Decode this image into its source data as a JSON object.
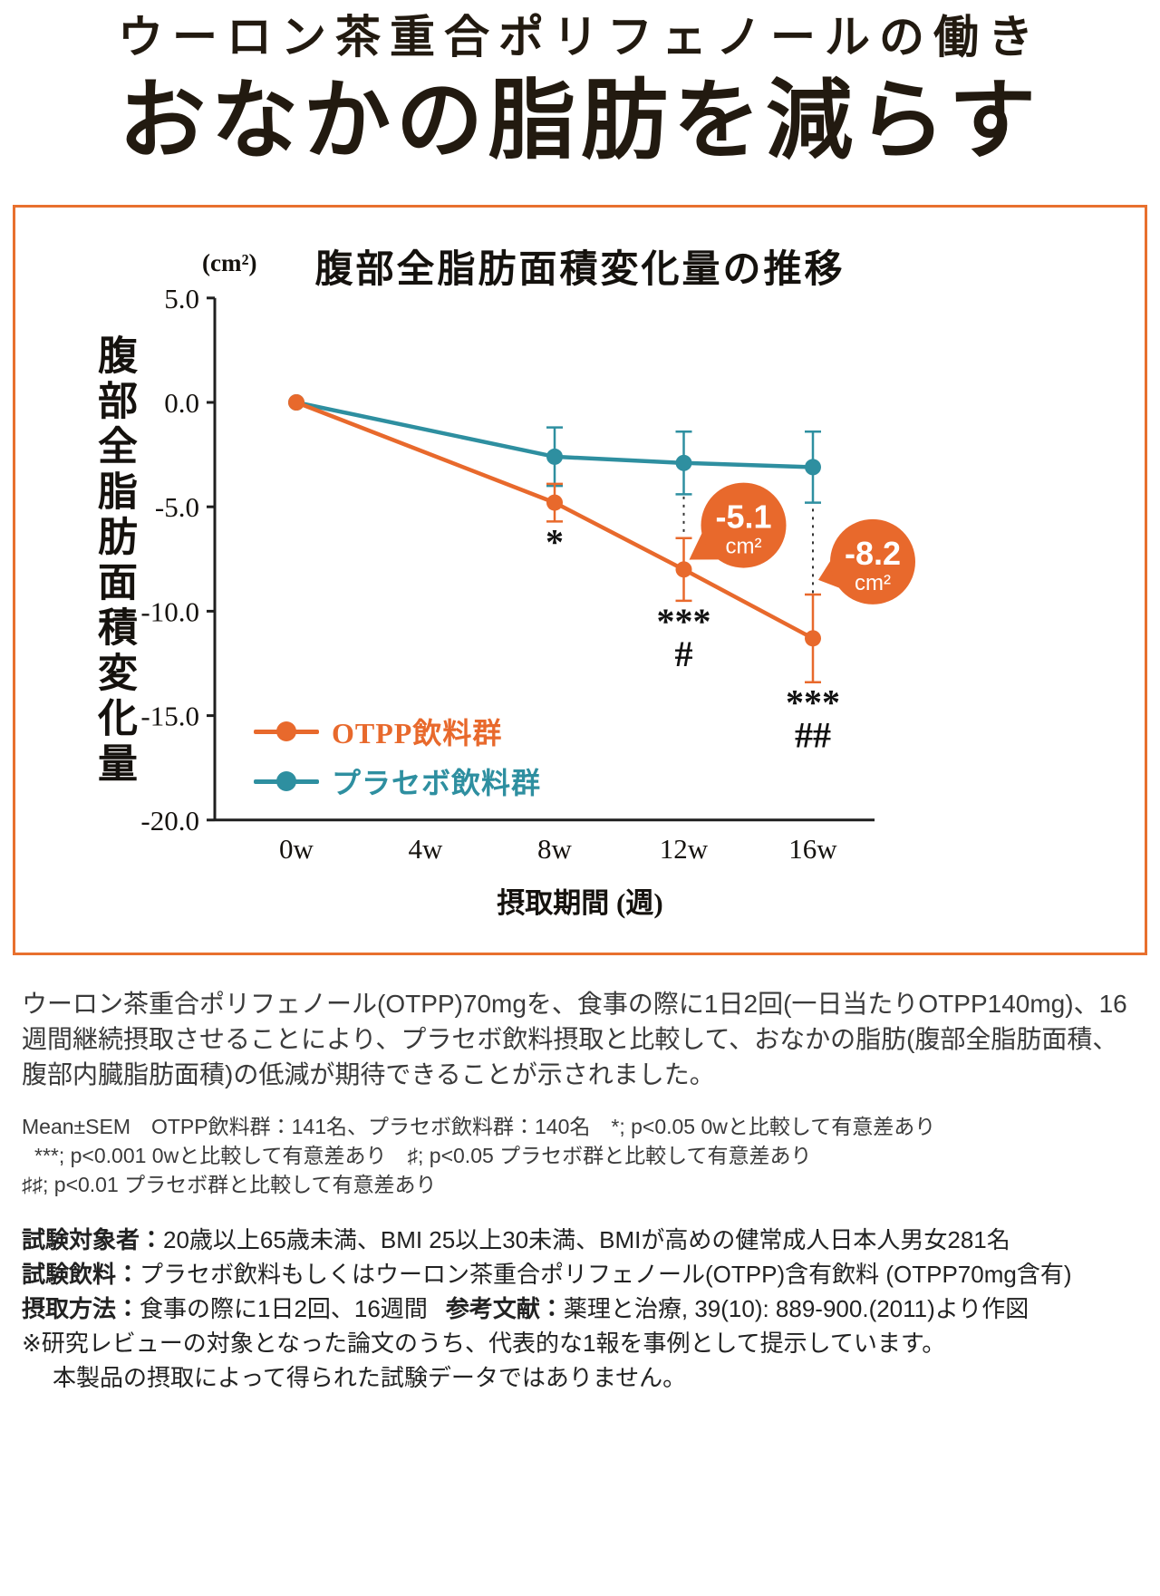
{
  "colors": {
    "accent_orange": "#e8702e",
    "series_orange": "#e8692c",
    "series_teal": "#2e8fa0",
    "axis": "#1f1f1f",
    "heading_text": "#221a10"
  },
  "header": {
    "subtitle": "ウーロン茶重合ポリフェノールの働き",
    "title": "おなかの脂肪を減らす"
  },
  "chart_data": {
    "type": "line",
    "title": "腹部全脂肪面積変化量の推移",
    "unit_label": "(cm²)",
    "ylabel": "腹部全脂肪面積変化量",
    "xlabel": "摂取期間 (週)",
    "grid": false,
    "legend_position": "lower-left-inside",
    "ylim": [
      -20,
      5
    ],
    "y_ticks": [
      "5.0",
      "0.0",
      "-5.0",
      "-10.0",
      "-15.0",
      "-20.0"
    ],
    "x_ticks": [
      "0w",
      "4w",
      "8w",
      "12w",
      "16w"
    ],
    "x_values": [
      0,
      4,
      8,
      12,
      16
    ],
    "series": [
      {
        "name": "OTPP飲料群",
        "color": "#e8692c",
        "x": [
          0,
          8,
          12,
          16
        ],
        "values": [
          0.0,
          -4.8,
          -8.0,
          -11.3
        ],
        "errors": [
          0,
          0.9,
          1.5,
          2.1
        ]
      },
      {
        "name": "プラセボ飲料群",
        "color": "#2e8fa0",
        "x": [
          0,
          8,
          12,
          16
        ],
        "values": [
          0.0,
          -2.6,
          -2.9,
          -3.1
        ],
        "errors": [
          0,
          1.4,
          1.5,
          1.7
        ]
      }
    ],
    "difference_bubbles": [
      {
        "x": 12,
        "label_value": "-5.1",
        "label_unit": "cm²"
      },
      {
        "x": 16,
        "label_value": "-8.2",
        "label_unit": "cm²"
      }
    ],
    "significance": [
      {
        "x": 8,
        "lines": [
          "*"
        ]
      },
      {
        "x": 12,
        "lines": [
          "***",
          "#"
        ]
      },
      {
        "x": 16,
        "lines": [
          "***",
          "##"
        ]
      }
    ]
  },
  "paragraph": "ウーロン茶重合ポリフェノール(OTPP)70mgを、食事の際に1日2回(一日当たりOTPP140mg)、16週間継続摂取させることにより、プラセボ飲料摂取と比較して、おなかの脂肪(腹部全脂肪面積、腹部内臓脂肪面積)の低減が期待できることが示されました。",
  "notes": {
    "line1": "Mean±SEM　OTPP飲料群：141名、プラセボ飲料群：140名　*; p<0.05 0wと比較して有意差あり",
    "line2": "***; p<0.001 0wと比較して有意差あり　♯; p<0.05 プラセボ群と比較して有意差あり",
    "line3": "♯♯; p<0.01 プラセボ群と比較して有意差あり"
  },
  "trial": {
    "row1_label": "試験対象者：",
    "row1_text": "20歳以上65歳未満、BMI 25以上30未満、BMIが高めの健常成人日本人男女281名",
    "row2_label": "試験飲料：",
    "row2_text": "プラセボ飲料もしくはウーロン茶重合ポリフェノール(OTPP)含有飲料 (OTPP70mg含有)",
    "row3_label": "摂取方法：",
    "row3_text": "食事の際に1日2回、16週間",
    "row3_label2": "参考文献：",
    "row3_text2": "薬理と治療, 39(10): 889-900.(2011)より作図",
    "disclaimer1": "※研究レビューの対象となった論文のうち、代表的な1報を事例として提示しています。",
    "disclaimer2": "本製品の摂取によって得られた試験データではありません。"
  }
}
